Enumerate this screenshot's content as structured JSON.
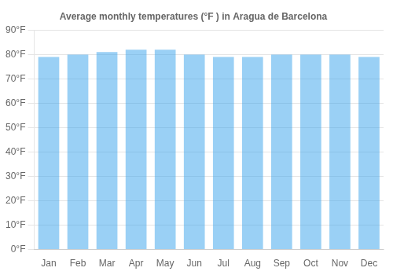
{
  "chart_data": {
    "type": "bar",
    "title": "Average monthly temperatures (°F ) in Aragua de Barcelona",
    "categories": [
      "Jan",
      "Feb",
      "Mar",
      "Apr",
      "May",
      "Jun",
      "Jul",
      "Aug",
      "Sep",
      "Oct",
      "Nov",
      "Dec"
    ],
    "values": [
      79,
      80,
      81,
      82,
      82,
      80,
      79,
      79,
      80,
      80,
      80,
      79
    ],
    "ylim": [
      0,
      90
    ],
    "yticks": [
      {
        "value": 0,
        "label": "0°F"
      },
      {
        "value": 10,
        "label": "10°F"
      },
      {
        "value": 20,
        "label": "20°F"
      },
      {
        "value": 30,
        "label": "30°F"
      },
      {
        "value": 40,
        "label": "40°F"
      },
      {
        "value": 50,
        "label": "50°F"
      },
      {
        "value": 60,
        "label": "60°F"
      },
      {
        "value": 70,
        "label": "70°F"
      },
      {
        "value": 80,
        "label": "80°F"
      },
      {
        "value": 90,
        "label": "90°F"
      }
    ],
    "grid": true
  }
}
